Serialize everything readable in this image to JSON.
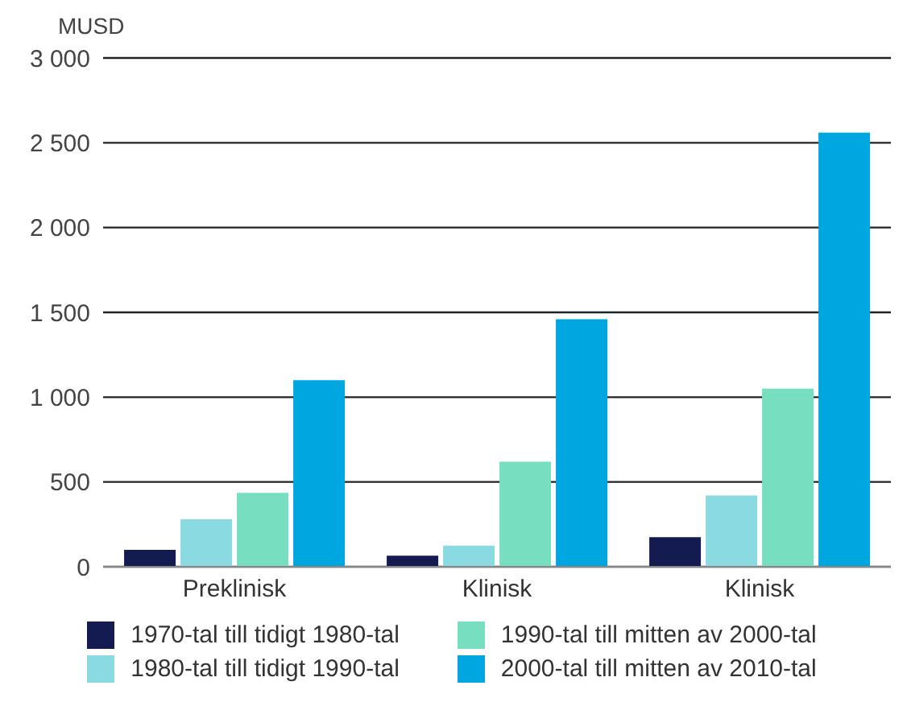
{
  "chart_data": {
    "type": "bar",
    "ylabel": "MUSD",
    "categories": [
      "Preklinisk",
      "Klinisk",
      "Klinisk"
    ],
    "series": [
      {
        "name": "1970-tal till tidigt 1980-tal",
        "color": "#131b50",
        "values": [
          100,
          65,
          175
        ]
      },
      {
        "name": "1980-tal till tidigt 1990-tal",
        "color": "#8adbe1",
        "values": [
          280,
          125,
          420
        ]
      },
      {
        "name": "1990-tal till mitten av 2000-tal",
        "color": "#77dfc0",
        "values": [
          435,
          620,
          1050
        ]
      },
      {
        "name": "2000-tal till mitten av 2010-tal",
        "color": "#00a6df",
        "values": [
          1100,
          1460,
          2560
        ]
      }
    ],
    "ylim": [
      0,
      3000
    ],
    "yticks": [
      0,
      500,
      {
        "value": 1000,
        "label": "1 000"
      },
      {
        "value": 1500,
        "label": "1 500"
      },
      {
        "value": 2000,
        "label": "2 000"
      },
      {
        "value": 2500,
        "label": "2 500"
      },
      {
        "value": 3000,
        "label": "3 000"
      }
    ],
    "grid": "y",
    "legend": "bottom"
  }
}
